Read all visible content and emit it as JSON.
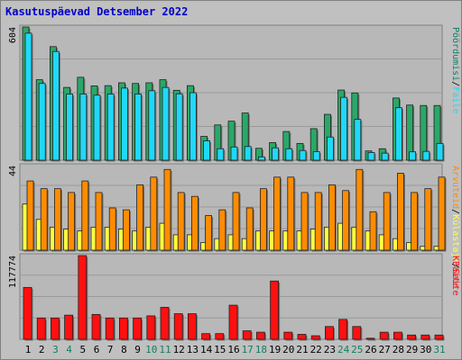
{
  "page": {
    "title": "Kasutuspäevad Detsember 2022"
  },
  "colors": {
    "frame_bg": "#c0c0c0",
    "panel_bg": "#b8b8b8",
    "visits": "#108060",
    "pages": "#2040e0",
    "files": "#20d8f8",
    "hits": "#2aa868",
    "sites": "#ffff40",
    "kbytes": "#ff1010",
    "weekend_day": "#108060",
    "sun_bar": "#ff8c00"
  },
  "chart_data": [
    {
      "type": "bar",
      "ylim": [
        0,
        604
      ],
      "ylabel_left": "604",
      "right_labels": [
        "Faile",
        "Pöördumisi"
      ],
      "right_separator": "/",
      "categories": [
        "1",
        "2",
        "3",
        "4",
        "5",
        "6",
        "7",
        "8",
        "9",
        "10",
        "11",
        "12",
        "13",
        "14",
        "15",
        "16",
        "17",
        "18",
        "19",
        "20",
        "21",
        "22",
        "23",
        "24",
        "25",
        "26",
        "27",
        "28",
        "29",
        "30",
        "31"
      ],
      "series": [
        {
          "name": "Pöördumisi",
          "values": [
            604,
            365,
            515,
            330,
            376,
            337,
            338,
            351,
            348,
            351,
            365,
            317,
            338,
            108,
            160,
            177,
            214,
            54,
            80,
            130,
            76,
            143,
            208,
            318,
            305,
            42,
            52,
            282,
            250,
            248,
            248
          ]
        },
        {
          "name": "Faile",
          "values": [
            576,
            348,
            493,
            300,
            300,
            295,
            300,
            327,
            300,
            315,
            330,
            301,
            306,
            88,
            52,
            60,
            62,
            15,
            56,
            52,
            44,
            39,
            105,
            285,
            185,
            35,
            32,
            238,
            38,
            40,
            76
          ]
        }
      ]
    },
    {
      "type": "bar",
      "ylim": [
        0,
        44
      ],
      "ylabel_left": "44",
      "right_labels": [
        "Saite",
        "Külastaja",
        "Arvuteid"
      ],
      "right_separator": "/",
      "categories": [
        "1",
        "2",
        "3",
        "4",
        "5",
        "6",
        "7",
        "8",
        "9",
        "10",
        "11",
        "12",
        "13",
        "14",
        "15",
        "16",
        "17",
        "18",
        "19",
        "20",
        "21",
        "22",
        "23",
        "24",
        "25",
        "26",
        "27",
        "28",
        "29",
        "30",
        "31"
      ],
      "series": [
        {
          "name": "Arvuteid",
          "values": [
            24,
            16,
            12,
            11,
            10,
            12,
            12,
            11,
            10,
            12,
            14,
            8,
            8,
            4,
            6,
            8,
            6,
            10,
            10,
            10,
            10,
            11,
            12,
            14,
            12,
            10,
            8,
            6,
            4,
            2,
            2
          ]
        },
        {
          "name": "Külastaja",
          "values": [
            36,
            32,
            32,
            30,
            36,
            30,
            22,
            21,
            34,
            38,
            42,
            30,
            28,
            18,
            21,
            30,
            22,
            32,
            38,
            38,
            30,
            30,
            34,
            31,
            42,
            20,
            30,
            40,
            30,
            32,
            38
          ]
        }
      ]
    },
    {
      "type": "bar",
      "ylim": [
        0,
        117774
      ],
      "ylabel_left": "117774",
      "right_labels": [
        "KBaite"
      ],
      "right_separator": "",
      "categories": [
        "1",
        "2",
        "3",
        "4",
        "5",
        "6",
        "7",
        "8",
        "9",
        "10",
        "11",
        "12",
        "13",
        "14",
        "15",
        "16",
        "17",
        "18",
        "19",
        "20",
        "21",
        "22",
        "23",
        "24",
        "25",
        "26",
        "27",
        "28",
        "29",
        "30",
        "31"
      ],
      "series": [
        {
          "name": "KBaite",
          "values": [
            73000,
            30000,
            30000,
            34000,
            117774,
            35000,
            30000,
            30000,
            30000,
            33000,
            45000,
            36000,
            36000,
            8000,
            8000,
            48000,
            12000,
            10000,
            82000,
            10000,
            7000,
            5000,
            18000,
            28000,
            18000,
            1500,
            10000,
            10000,
            6000,
            6000,
            6000
          ]
        }
      ]
    }
  ],
  "x_axis": {
    "labels": [
      "1",
      "2",
      "3",
      "4",
      "5",
      "6",
      "7",
      "8",
      "9",
      "10",
      "11",
      "12",
      "13",
      "14",
      "15",
      "16",
      "17",
      "18",
      "19",
      "20",
      "21",
      "22",
      "23",
      "24",
      "25",
      "26",
      "27",
      "28",
      "29",
      "30",
      "31"
    ],
    "weekend_days": [
      "3",
      "4",
      "10",
      "11",
      "17",
      "18",
      "24",
      "25",
      "31"
    ]
  }
}
